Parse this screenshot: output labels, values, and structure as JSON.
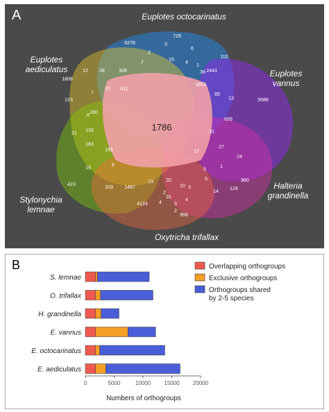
{
  "panel_a": {
    "label": "A",
    "center_value": "1786",
    "species_labels": [
      {
        "lines": [
          "Euplotes octocarinatus"
        ]
      },
      {
        "lines": [
          "Euplotes",
          "aediculatus"
        ]
      },
      {
        "lines": [
          "Euplotes",
          "vannus"
        ]
      },
      {
        "lines": [
          "Halteria",
          "grandinella"
        ]
      },
      {
        "lines": [
          "Stylonychia",
          "lemnae"
        ]
      },
      {
        "lines": [
          "Oxytricha trifallax"
        ]
      }
    ],
    "region_numbers": [
      "728",
      "6278",
      "3",
      "6",
      "2",
      "15",
      "4",
      "1",
      "7",
      "36",
      "110",
      "2443",
      "1653",
      "12",
      "28",
      "306",
      "20",
      "611",
      "1808",
      "123",
      "7",
      "85",
      "13",
      "5688",
      "699",
      "8",
      "180",
      "27",
      "21",
      "135",
      "183",
      "195",
      "31",
      "27",
      "24",
      "1",
      "19",
      "6",
      "423",
      "103",
      "1487",
      "23",
      "20",
      "3",
      "5",
      "5",
      "10",
      "960",
      "14",
      "126",
      "4124",
      "31",
      "4",
      "3",
      "958",
      "2",
      "4",
      "2"
    ],
    "colors": {
      "background": "#4a4a4a",
      "octocarinatus": "#1e90ff",
      "aediculatus": "#f5d020",
      "vannus": "#8a2be2",
      "halteria": "#d42fa8",
      "stylonychia": "#7fd400",
      "oxytricha": "#ff6a3d",
      "center": "#f2a0a8"
    }
  },
  "panel_b": {
    "label": "B",
    "legend": [
      {
        "label": "Overlapping orthogroups",
        "color": "#ef5a50"
      },
      {
        "label": "Exclusive orthogroups",
        "color": "#f4a028"
      },
      {
        "label_lines": [
          "Orthogroups shared",
          "by 2-5 species"
        ],
        "color": "#4a5ed8"
      }
    ]
  },
  "chart_data": {
    "type": "bar",
    "orientation": "horizontal",
    "stacked": true,
    "categories": [
      "S. lemnae",
      "O. trifallax",
      "H. grandinella",
      "E. vannus",
      "E. octocarinatus",
      "E. aediculatus"
    ],
    "series": [
      {
        "name": "Overlapping orthogroups",
        "color": "#ef5a50",
        "values": [
          1786,
          1786,
          1786,
          1786,
          1786,
          1786
        ]
      },
      {
        "name": "Exclusive orthogroups",
        "color": "#f4a028",
        "values": [
          300,
          850,
          950,
          5600,
          700,
          1750
        ]
      },
      {
        "name": "Orthogroups shared by 2-5 species",
        "color": "#4a5ed8",
        "values": [
          9000,
          9100,
          3100,
          4800,
          11300,
          12900
        ]
      }
    ],
    "xlabel": "Numbers of orthogroups",
    "xlim": [
      0,
      20000
    ],
    "xticks": [
      "0",
      "5000",
      "10000",
      "15000",
      "20000"
    ],
    "legend_position": "top-right",
    "grid": false
  }
}
